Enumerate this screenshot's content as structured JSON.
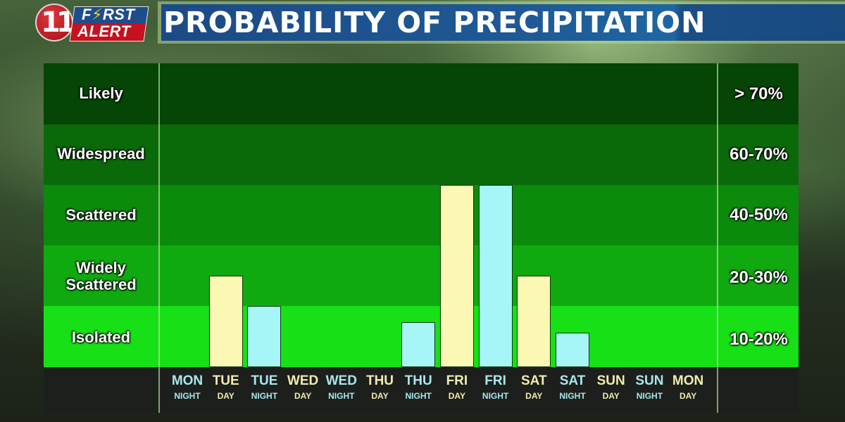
{
  "logo": {
    "number": "11",
    "line1_pre": "F",
    "line1_bolt": "⚡",
    "line1_post": "RST",
    "line2": "ALERT"
  },
  "header": {
    "title": "PROBABILITY OF PRECIPITATION"
  },
  "colors": {
    "day_bar": "#fbf8b4",
    "night_bar": "#a6f5f7",
    "day_label": "#f2ecae",
    "night_label": "#a8e8ee",
    "band_likely": "#054505",
    "band_widespread": "#0a6a0a",
    "band_scattered": "#0c8a0c",
    "band_widely_scattered": "#10aa10",
    "band_isolated": "#17e017"
  },
  "bands": [
    {
      "label": "Likely",
      "range": "> 70%"
    },
    {
      "label": "Widespread",
      "range": "60-70%"
    },
    {
      "label": "Scattered",
      "range": "40-50%"
    },
    {
      "label": "Widely Scattered",
      "range": "20-30%"
    },
    {
      "label": "Isolated",
      "range": "10-20%"
    }
  ],
  "periods": [
    {
      "day": "MON",
      "part": "NIGHT",
      "type": "night",
      "pop": 0
    },
    {
      "day": "TUE",
      "part": "DAY",
      "type": "day",
      "pop": 25
    },
    {
      "day": "TUE",
      "part": "NIGHT",
      "type": "night",
      "pop": 20
    },
    {
      "day": "WED",
      "part": "DAY",
      "type": "day",
      "pop": 0
    },
    {
      "day": "WED",
      "part": "NIGHT",
      "type": "night",
      "pop": 0
    },
    {
      "day": "THU",
      "part": "DAY",
      "type": "day",
      "pop": 0
    },
    {
      "day": "THU",
      "part": "NIGHT",
      "type": "night",
      "pop": 15
    },
    {
      "day": "FRI",
      "part": "DAY",
      "type": "day",
      "pop": 50
    },
    {
      "day": "FRI",
      "part": "NIGHT",
      "type": "night",
      "pop": 50
    },
    {
      "day": "SAT",
      "part": "DAY",
      "type": "day",
      "pop": 25
    },
    {
      "day": "SAT",
      "part": "NIGHT",
      "type": "night",
      "pop": 12
    },
    {
      "day": "SUN",
      "part": "DAY",
      "type": "day",
      "pop": 0
    },
    {
      "day": "SUN",
      "part": "NIGHT",
      "type": "night",
      "pop": 0
    },
    {
      "day": "MON",
      "part": "DAY",
      "type": "day",
      "pop": 0
    }
  ],
  "chart_data": {
    "type": "bar",
    "title": "PROBABILITY OF PRECIPITATION",
    "categories": [
      "MON NIGHT",
      "TUE DAY",
      "TUE NIGHT",
      "WED DAY",
      "WED NIGHT",
      "THU DAY",
      "THU NIGHT",
      "FRI DAY",
      "FRI NIGHT",
      "SAT DAY",
      "SAT NIGHT",
      "SUN DAY",
      "SUN NIGHT",
      "MON DAY"
    ],
    "values": [
      0,
      25,
      20,
      0,
      0,
      0,
      15,
      50,
      50,
      25,
      12,
      0,
      0,
      0
    ],
    "bar_colors": [
      "night",
      "day",
      "night",
      "day",
      "night",
      "day",
      "night",
      "day",
      "night",
      "day",
      "night",
      "day",
      "night",
      "day"
    ],
    "xlabel": "",
    "ylabel": "Probability of Precipitation",
    "y_categories": [
      "Isolated (10-20%)",
      "Widely Scattered (20-30%)",
      "Scattered (40-50%)",
      "Widespread (60-70%)",
      "Likely (> 70%)"
    ],
    "ylim": [
      0,
      100
    ],
    "grid": false,
    "legend": "none; yellow = day periods, cyan = night periods"
  }
}
